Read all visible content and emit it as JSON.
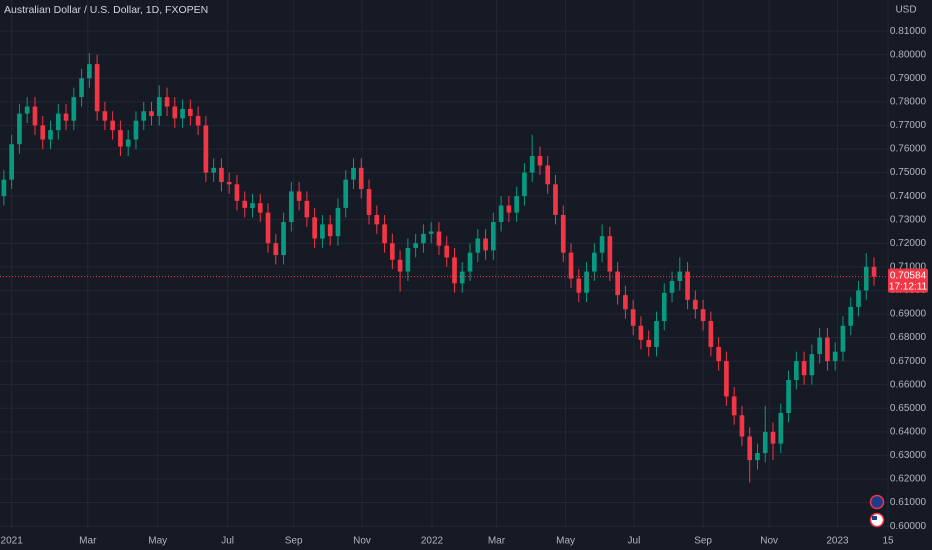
{
  "chart_data": {
    "type": "candlestick",
    "title": "Australian Dollar / U.S. Dollar, 1D, FXOPEN",
    "currency": "USD",
    "countdown": "17:12:11",
    "up_color": "#089981",
    "down_color": "#f23645",
    "grid": true,
    "x": [
      0,
      1,
      2,
      3,
      4,
      5,
      6,
      7,
      8,
      9,
      10,
      11,
      12,
      13,
      14,
      15,
      16,
      17,
      18,
      19,
      20,
      21,
      22,
      23,
      24,
      25,
      26,
      27,
      28,
      29,
      30,
      31,
      32,
      33,
      34,
      35,
      36,
      37,
      38,
      39,
      40,
      41,
      42,
      43,
      44,
      45,
      46,
      47,
      48,
      49,
      50,
      51,
      52,
      53,
      54,
      55,
      56,
      57,
      58,
      59,
      60,
      61,
      62,
      63,
      64,
      65,
      66,
      67,
      68,
      69,
      70,
      71,
      72,
      73,
      74,
      75,
      76,
      77,
      78,
      79,
      80,
      81,
      82,
      83,
      84,
      85,
      86,
      87,
      88,
      89,
      90,
      91,
      92,
      93,
      94,
      95,
      96,
      97,
      98,
      99,
      100,
      101,
      102,
      103,
      104,
      105,
      106,
      107,
      108,
      109,
      110,
      111,
      112
    ],
    "open": [
      0.74,
      0.747,
      0.762,
      0.775,
      0.778,
      0.77,
      0.764,
      0.768,
      0.775,
      0.772,
      0.782,
      0.79,
      0.796,
      0.776,
      0.772,
      0.768,
      0.761,
      0.764,
      0.772,
      0.776,
      0.774,
      0.782,
      0.778,
      0.773,
      0.777,
      0.774,
      0.77,
      0.75,
      0.752,
      0.746,
      0.745,
      0.738,
      0.735,
      0.737,
      0.733,
      0.72,
      0.715,
      0.729,
      0.742,
      0.738,
      0.731,
      0.722,
      0.728,
      0.723,
      0.735,
      0.747,
      0.752,
      0.743,
      0.732,
      0.728,
      0.72,
      0.713,
      0.708,
      0.718,
      0.72,
      0.724,
      0.725,
      0.719,
      0.714,
      0.703,
      0.708,
      0.716,
      0.722,
      0.717,
      0.729,
      0.736,
      0.733,
      0.74,
      0.75,
      0.757,
      0.753,
      0.745,
      0.732,
      0.716,
      0.705,
      0.699,
      0.708,
      0.716,
      0.723,
      0.708,
      0.698,
      0.692,
      0.685,
      0.679,
      0.676,
      0.687,
      0.699,
      0.704,
      0.708,
      0.696,
      0.692,
      0.687,
      0.676,
      0.67,
      0.655,
      0.647,
      0.638,
      0.628,
      0.631,
      0.64,
      0.635,
      0.648,
      0.662,
      0.67,
      0.664,
      0.673,
      0.68,
      0.67,
      0.674,
      0.685,
      0.693,
      0.7,
      0.71
    ],
    "high": [
      0.751,
      0.766,
      0.779,
      0.782,
      0.782,
      0.774,
      0.772,
      0.779,
      0.779,
      0.786,
      0.794,
      0.8007,
      0.8,
      0.78,
      0.776,
      0.772,
      0.768,
      0.776,
      0.78,
      0.78,
      0.787,
      0.786,
      0.782,
      0.781,
      0.781,
      0.778,
      0.774,
      0.756,
      0.756,
      0.75,
      0.749,
      0.742,
      0.741,
      0.741,
      0.737,
      0.724,
      0.733,
      0.746,
      0.746,
      0.742,
      0.735,
      0.732,
      0.732,
      0.739,
      0.751,
      0.756,
      0.756,
      0.747,
      0.736,
      0.732,
      0.724,
      0.717,
      0.722,
      0.724,
      0.728,
      0.729,
      0.729,
      0.723,
      0.718,
      0.712,
      0.72,
      0.726,
      0.726,
      0.733,
      0.74,
      0.74,
      0.744,
      0.754,
      0.766,
      0.761,
      0.757,
      0.749,
      0.736,
      0.72,
      0.709,
      0.712,
      0.72,
      0.728,
      0.727,
      0.712,
      0.702,
      0.696,
      0.689,
      0.683,
      0.691,
      0.703,
      0.708,
      0.714,
      0.712,
      0.7,
      0.696,
      0.691,
      0.68,
      0.674,
      0.659,
      0.651,
      0.642,
      0.635,
      0.651,
      0.644,
      0.652,
      0.666,
      0.674,
      0.674,
      0.677,
      0.684,
      0.684,
      0.678,
      0.689,
      0.697,
      0.704,
      0.7158,
      0.714
    ],
    "low": [
      0.736,
      0.743,
      0.758,
      0.771,
      0.766,
      0.76,
      0.76,
      0.764,
      0.768,
      0.768,
      0.778,
      0.786,
      0.772,
      0.768,
      0.764,
      0.757,
      0.757,
      0.76,
      0.768,
      0.77,
      0.77,
      0.774,
      0.769,
      0.769,
      0.77,
      0.766,
      0.746,
      0.746,
      0.742,
      0.741,
      0.734,
      0.731,
      0.731,
      0.729,
      0.716,
      0.711,
      0.711,
      0.725,
      0.734,
      0.727,
      0.718,
      0.718,
      0.719,
      0.719,
      0.731,
      0.743,
      0.739,
      0.728,
      0.724,
      0.716,
      0.709,
      0.6995,
      0.704,
      0.714,
      0.716,
      0.72,
      0.715,
      0.71,
      0.699,
      0.699,
      0.704,
      0.712,
      0.713,
      0.713,
      0.725,
      0.729,
      0.729,
      0.736,
      0.746,
      0.749,
      0.741,
      0.728,
      0.712,
      0.701,
      0.695,
      0.695,
      0.704,
      0.712,
      0.704,
      0.694,
      0.688,
      0.681,
      0.675,
      0.672,
      0.672,
      0.683,
      0.695,
      0.7,
      0.692,
      0.688,
      0.683,
      0.672,
      0.666,
      0.651,
      0.643,
      0.634,
      0.6185,
      0.624,
      0.627,
      0.628,
      0.631,
      0.644,
      0.658,
      0.66,
      0.66,
      0.669,
      0.666,
      0.666,
      0.67,
      0.681,
      0.689,
      0.696,
      0.702
    ],
    "close": [
      0.747,
      0.762,
      0.775,
      0.778,
      0.77,
      0.764,
      0.768,
      0.775,
      0.772,
      0.782,
      0.79,
      0.796,
      0.776,
      0.772,
      0.768,
      0.761,
      0.764,
      0.772,
      0.776,
      0.774,
      0.782,
      0.778,
      0.773,
      0.777,
      0.774,
      0.77,
      0.75,
      0.752,
      0.746,
      0.745,
      0.738,
      0.735,
      0.737,
      0.733,
      0.72,
      0.715,
      0.729,
      0.742,
      0.738,
      0.731,
      0.722,
      0.728,
      0.723,
      0.735,
      0.747,
      0.752,
      0.743,
      0.732,
      0.728,
      0.72,
      0.713,
      0.708,
      0.718,
      0.72,
      0.724,
      0.725,
      0.719,
      0.714,
      0.703,
      0.708,
      0.716,
      0.722,
      0.717,
      0.729,
      0.736,
      0.733,
      0.74,
      0.75,
      0.757,
      0.753,
      0.745,
      0.732,
      0.716,
      0.705,
      0.699,
      0.708,
      0.716,
      0.723,
      0.708,
      0.698,
      0.692,
      0.685,
      0.679,
      0.676,
      0.687,
      0.699,
      0.704,
      0.708,
      0.696,
      0.692,
      0.687,
      0.676,
      0.67,
      0.655,
      0.647,
      0.638,
      0.628,
      0.631,
      0.64,
      0.635,
      0.648,
      0.662,
      0.67,
      0.664,
      0.673,
      0.68,
      0.67,
      0.674,
      0.685,
      0.693,
      0.7,
      0.71,
      0.70584
    ],
    "xlim": [
      -0.5,
      113.8
    ],
    "xticks": [
      {
        "value": 1.0,
        "label": "2021"
      },
      {
        "value": 10.8,
        "label": "Mar"
      },
      {
        "value": 19.8,
        "label": "May"
      },
      {
        "value": 28.8,
        "label": "Jul"
      },
      {
        "value": 37.3,
        "label": "Sep"
      },
      {
        "value": 46.1,
        "label": "Nov"
      },
      {
        "value": 55.1,
        "label": "2022"
      },
      {
        "value": 63.4,
        "label": "Mar"
      },
      {
        "value": 72.3,
        "label": "May"
      },
      {
        "value": 81.1,
        "label": "Jul"
      },
      {
        "value": 90.0,
        "label": "Sep"
      },
      {
        "value": 98.5,
        "label": "Nov"
      },
      {
        "value": 107.3,
        "label": "2023"
      },
      {
        "value": 113.8,
        "label": "15"
      }
    ],
    "ylim": [
      0.5992,
      0.8232
    ],
    "yticks": [
      {
        "value": 0.6,
        "label": "0.60000"
      },
      {
        "value": 0.61,
        "label": "0.61000"
      },
      {
        "value": 0.62,
        "label": "0.62000"
      },
      {
        "value": 0.63,
        "label": "0.63000"
      },
      {
        "value": 0.64,
        "label": "0.64000"
      },
      {
        "value": 0.65,
        "label": "0.65000"
      },
      {
        "value": 0.66,
        "label": "0.66000"
      },
      {
        "value": 0.67,
        "label": "0.67000"
      },
      {
        "value": 0.68,
        "label": "0.68000"
      },
      {
        "value": 0.69,
        "label": "0.69000"
      },
      {
        "value": 0.7,
        "label": "0.70000"
      },
      {
        "value": 0.71,
        "label": "0.71000"
      },
      {
        "value": 0.72,
        "label": "0.72000"
      },
      {
        "value": 0.73,
        "label": "0.73000"
      },
      {
        "value": 0.74,
        "label": "0.74000"
      },
      {
        "value": 0.75,
        "label": "0.75000"
      },
      {
        "value": 0.76,
        "label": "0.76000"
      },
      {
        "value": 0.77,
        "label": "0.77000"
      },
      {
        "value": 0.78,
        "label": "0.78000"
      },
      {
        "value": 0.79,
        "label": "0.79000"
      },
      {
        "value": 0.8,
        "label": "0.80000"
      },
      {
        "value": 0.81,
        "label": "0.81000"
      }
    ]
  }
}
